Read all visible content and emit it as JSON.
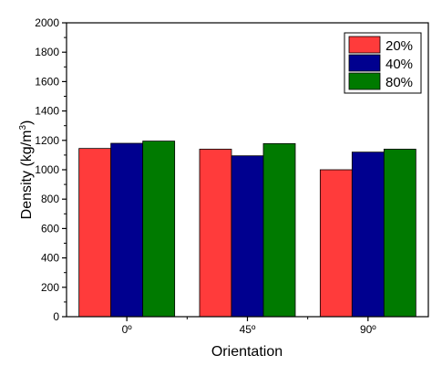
{
  "chart_data": {
    "type": "bar",
    "categories": [
      "0º",
      "45º",
      "90º"
    ],
    "series": [
      {
        "name": "20%",
        "values": [
          1145,
          1140,
          1000
        ],
        "color": "#ff3b3b"
      },
      {
        "name": "40%",
        "values": [
          1180,
          1095,
          1120
        ],
        "color": "#00008f"
      },
      {
        "name": "80%",
        "values": [
          1195,
          1178,
          1140
        ],
        "color": "#007a00"
      }
    ],
    "xlabel": "Orientation",
    "ylabel_main": "Density (kg/m",
    "ylabel_sup": "3",
    "ylabel_tail": ")",
    "ylim": [
      0,
      2000
    ],
    "yticks": [
      0,
      200,
      400,
      600,
      800,
      1000,
      1200,
      1400,
      1600,
      1800,
      2000
    ],
    "grid": false,
    "legend_position": "top-right"
  }
}
